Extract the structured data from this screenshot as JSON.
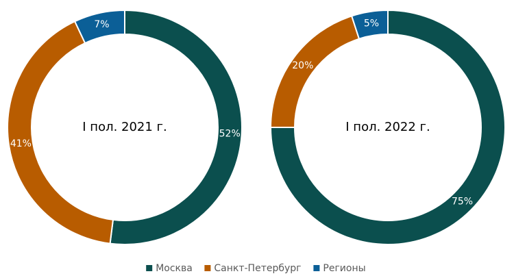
{
  "chart_data": [
    {
      "type": "donut",
      "title": "I пол. 2021 г.",
      "categories": [
        "Москва",
        "Санкт-Петербург",
        "Регионы"
      ],
      "values": [
        52,
        41,
        7
      ],
      "value_labels": [
        "52%",
        "41%",
        "7%"
      ],
      "colors": [
        "#0b4f4e",
        "#b85c00",
        "#0b5f97"
      ]
    },
    {
      "type": "donut",
      "title": "I пол. 2022 г.",
      "values": [
        75,
        20,
        5
      ],
      "value_labels": [
        "75%",
        "20%",
        "5%"
      ],
      "colors": [
        "#0b4f4e",
        "#b85c00",
        "#0b5f97"
      ]
    }
  ]
}
